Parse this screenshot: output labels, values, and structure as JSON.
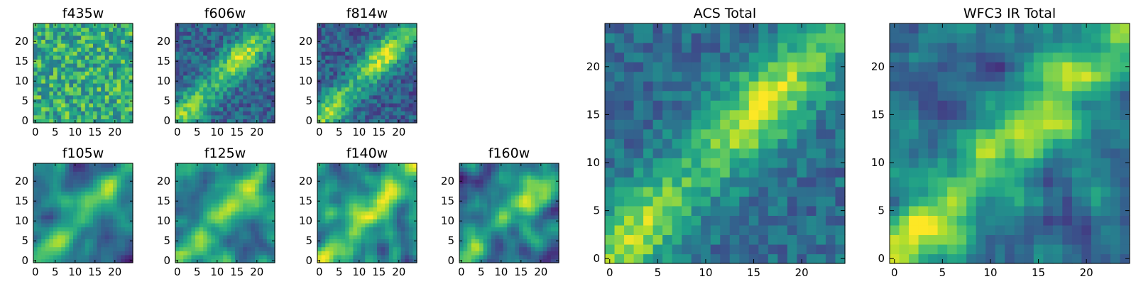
{
  "chart_data": [
    {
      "type": "heatmap",
      "title": "f435w",
      "cmap": "viridis",
      "size": 25,
      "seed": 11,
      "pattern": "noise",
      "noise": 0.5,
      "base": 0.62,
      "smooth": 0,
      "signal": 0.1,
      "xticks": [
        0,
        5,
        10,
        15,
        20
      ],
      "yticks": [
        0,
        5,
        10,
        15,
        20
      ],
      "xlim": [
        0,
        24
      ],
      "ylim": [
        0,
        24
      ]
    },
    {
      "type": "heatmap",
      "title": "f606w",
      "cmap": "viridis",
      "size": 25,
      "seed": 23,
      "pattern": "diagonal",
      "noise": 0.32,
      "base": 0.32,
      "smooth": 0,
      "signal": 0.6,
      "xticks": [
        0,
        5,
        10,
        15,
        20
      ],
      "yticks": [
        0,
        5,
        10,
        15,
        20
      ],
      "xlim": [
        0,
        24
      ],
      "ylim": [
        0,
        24
      ]
    },
    {
      "type": "heatmap",
      "title": "f814w",
      "cmap": "viridis",
      "size": 25,
      "seed": 37,
      "pattern": "diagonal",
      "noise": 0.32,
      "base": 0.3,
      "smooth": 0,
      "signal": 0.62,
      "xticks": [
        0,
        5,
        10,
        15,
        20
      ],
      "yticks": [
        0,
        5,
        10,
        15,
        20
      ],
      "xlim": [
        0,
        24
      ],
      "ylim": [
        0,
        24
      ]
    },
    {
      "type": "heatmap",
      "title": "f105w",
      "cmap": "viridis",
      "size": 25,
      "seed": 41,
      "pattern": "diagonal",
      "noise": 0.6,
      "base": 0.36,
      "smooth": 2,
      "signal": 0.5,
      "xticks": [
        0,
        5,
        10,
        15,
        20
      ],
      "yticks": [
        0,
        5,
        10,
        15,
        20
      ],
      "xlim": [
        0,
        24
      ],
      "ylim": [
        0,
        24
      ]
    },
    {
      "type": "heatmap",
      "title": "f125w",
      "cmap": "viridis",
      "size": 25,
      "seed": 53,
      "pattern": "diagonal",
      "noise": 0.65,
      "base": 0.45,
      "smooth": 2,
      "signal": 0.42,
      "xticks": [
        0,
        5,
        10,
        15,
        20
      ],
      "yticks": [
        0,
        5,
        10,
        15,
        20
      ],
      "xlim": [
        0,
        24
      ],
      "ylim": [
        0,
        24
      ]
    },
    {
      "type": "heatmap",
      "title": "f140w",
      "cmap": "viridis",
      "size": 25,
      "seed": 67,
      "pattern": "diagonal",
      "noise": 0.65,
      "base": 0.45,
      "smooth": 2,
      "signal": 0.45,
      "xticks": [
        0,
        5,
        10,
        15,
        20
      ],
      "yticks": [
        0,
        5,
        10,
        15,
        20
      ],
      "xlim": [
        0,
        24
      ],
      "ylim": [
        0,
        24
      ]
    },
    {
      "type": "heatmap",
      "title": "f160w",
      "cmap": "viridis",
      "size": 25,
      "seed": 79,
      "pattern": "diagonal",
      "noise": 0.6,
      "base": 0.35,
      "smooth": 2,
      "signal": 0.55,
      "xticks": [
        0,
        5,
        10,
        15,
        20
      ],
      "yticks": [
        0,
        5,
        10,
        15,
        20
      ],
      "xlim": [
        0,
        24
      ],
      "ylim": [
        0,
        24
      ]
    },
    {
      "type": "heatmap",
      "title": "ACS Total",
      "cmap": "viridis",
      "size": 25,
      "seed": 89,
      "pattern": "diagonal",
      "noise": 0.26,
      "base": 0.36,
      "smooth": 0,
      "signal": 0.6,
      "xticks": [
        0,
        5,
        10,
        15,
        20
      ],
      "yticks": [
        0,
        5,
        10,
        15,
        20
      ],
      "xlim": [
        0,
        24
      ],
      "ylim": [
        0,
        24
      ]
    },
    {
      "type": "heatmap",
      "title": "WFC3 IR Total",
      "cmap": "viridis",
      "size": 25,
      "seed": 97,
      "pattern": "diagonal",
      "noise": 0.5,
      "base": 0.36,
      "smooth": 1,
      "signal": 0.62,
      "xticks": [
        0,
        5,
        10,
        15,
        20
      ],
      "yticks": [
        0,
        5,
        10,
        15,
        20
      ],
      "xlim": [
        0,
        24
      ],
      "ylim": [
        0,
        24
      ]
    }
  ]
}
